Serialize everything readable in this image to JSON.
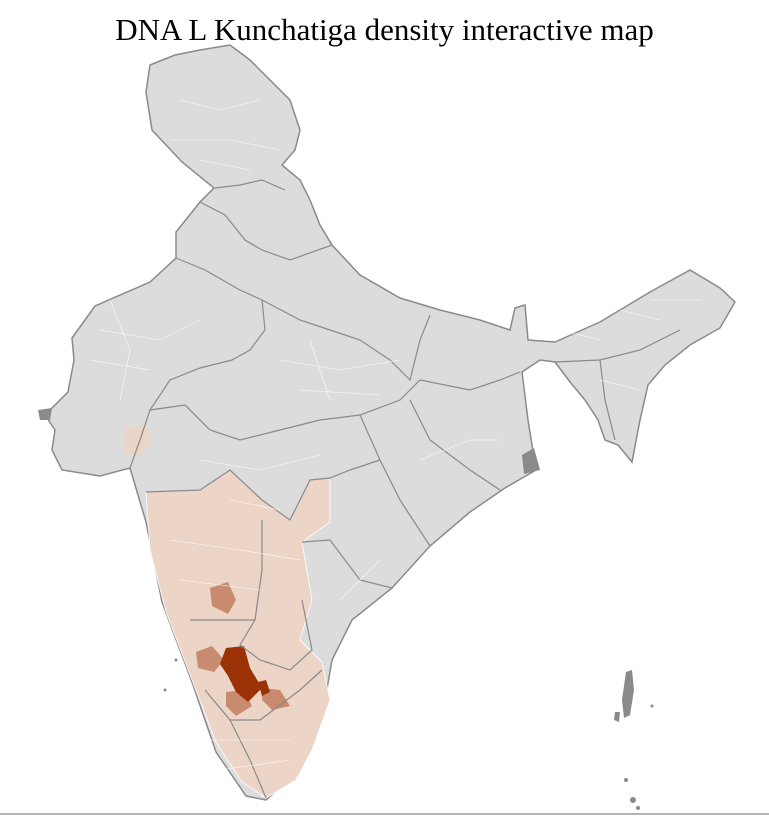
{
  "title": "DNA L Kunchatiga density interactive map",
  "map": {
    "region": "India districts",
    "colors": {
      "no_data": "#dcdcdc",
      "state_border": "#8a8a8a",
      "district_border": "#ffffff",
      "low": "#ecd4c6",
      "medium": "#c98b6f",
      "high": "#9b3205"
    }
  }
}
